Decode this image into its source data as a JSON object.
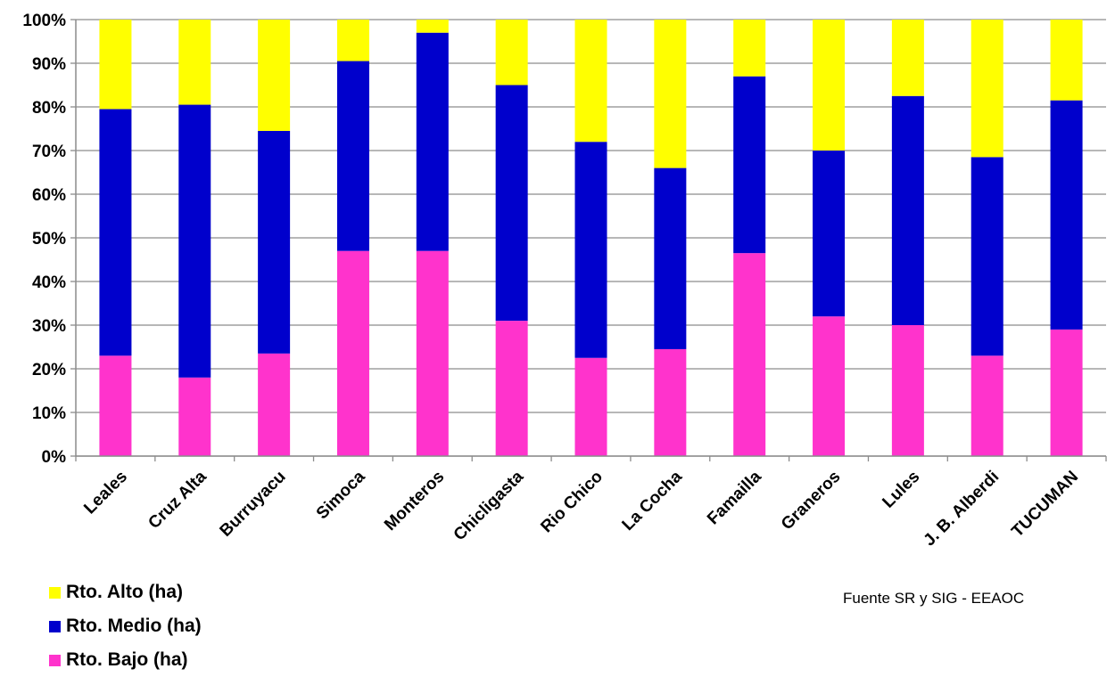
{
  "chart_data": {
    "type": "bar",
    "stacked": true,
    "percent": true,
    "categories": [
      "Leales",
      "Cruz Alta",
      "Burruyacu",
      "Simoca",
      "Monteros",
      "Chicligasta",
      "Rio Chico",
      "La Cocha",
      "Famailla",
      "Graneros",
      "Lules",
      "J. B. Alberdi",
      "TUCUMAN"
    ],
    "series": [
      {
        "name": "Rto. Bajo (ha)",
        "color": "#ff33cc",
        "values": [
          23,
          18,
          23.5,
          47,
          47,
          31,
          22.5,
          24.5,
          46.5,
          32,
          30,
          23,
          29
        ]
      },
      {
        "name": "Rto. Medio (ha)",
        "color": "#0000cc",
        "values": [
          56.5,
          62.5,
          51,
          43.5,
          50,
          54,
          49.5,
          41.5,
          40.5,
          38,
          52.5,
          45.5,
          52.5
        ]
      },
      {
        "name": "Rto. Alto (ha)",
        "color": "#ffff00",
        "values": [
          20.5,
          19.5,
          25.5,
          9.5,
          3,
          15,
          28,
          34,
          13,
          30,
          17.5,
          31.5,
          18.5
        ]
      }
    ],
    "yticks": [
      "0%",
      "10%",
      "20%",
      "30%",
      "40%",
      "50%",
      "60%",
      "70%",
      "80%",
      "90%",
      "100%"
    ],
    "ylim": [
      0,
      100
    ],
    "grid": true,
    "legend_position": "bottom-left",
    "source": "Fuente SR y SIG - EEAOC"
  }
}
